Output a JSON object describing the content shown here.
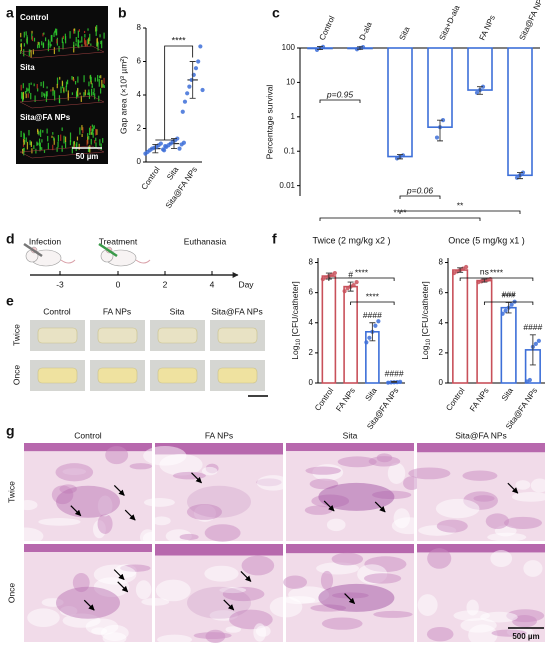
{
  "panel_labels": [
    "a",
    "b",
    "c",
    "d",
    "e",
    "f",
    "g"
  ],
  "panel_a": {
    "labels": [
      "Control",
      "Sita",
      "Sita@FA NPs"
    ],
    "scale_bar": "50 µm"
  },
  "chart_data": [
    {
      "type": "dot",
      "y_label": "Gap area (×10³ µm²)",
      "categories": [
        "Control",
        "Sita",
        "Sita@FA NPs"
      ],
      "values": [
        0.8,
        1.1,
        4.9
      ],
      "errors": [
        0.25,
        0.3,
        1.1
      ],
      "points": [
        [
          0.5,
          0.6,
          0.7,
          0.8,
          0.85,
          0.9,
          1.0,
          1.1,
          0.75,
          0.95
        ],
        [
          0.7,
          0.9,
          1.0,
          1.1,
          1.2,
          1.3,
          1.4,
          0.8,
          1.05,
          1.15
        ],
        [
          3.0,
          3.6,
          4.1,
          4.5,
          4.9,
          5.2,
          5.6,
          6.0,
          6.9,
          4.3
        ]
      ],
      "color": "#3d6fd8",
      "ylim": [
        0,
        8
      ],
      "yticks": [
        0,
        2,
        4,
        6,
        8
      ],
      "brackets": [
        {
          "from": [
            0,
            1
          ],
          "to": 2,
          "label": "****"
        }
      ]
    },
    {
      "type": "bar",
      "log_y": true,
      "y_label": "Percentage survival",
      "categories": [
        "Control",
        "D-ala",
        "Sita",
        "Sita+D-ala",
        "FA NPs",
        "Sita@FA NPs"
      ],
      "values": [
        100,
        100,
        0.07,
        0.5,
        6,
        0.02
      ],
      "errors": [
        10,
        8,
        0.01,
        0.3,
        1.5,
        0.004
      ],
      "points": [
        [
          88,
          100,
          108
        ],
        [
          92,
          100,
          106
        ],
        [
          0.062,
          0.07,
          0.076
        ],
        [
          0.25,
          0.5,
          0.8
        ],
        [
          5,
          6,
          7.5
        ],
        [
          0.017,
          0.02,
          0.024
        ]
      ],
      "color": "#3d6fd8",
      "ylim": [
        0.005,
        100
      ],
      "yticks": [
        0.01,
        0.1,
        1,
        10,
        100
      ],
      "brackets": [
        {
          "from": 0,
          "to": 1,
          "label": "p=0.95"
        },
        {
          "from": 2,
          "to": 3,
          "label": "p=0.06"
        },
        {
          "from": 0,
          "to": 4,
          "label": "****"
        },
        {
          "from": 2,
          "to": 5,
          "label": "**"
        }
      ]
    },
    {
      "type": "bar",
      "title": "Twice (2 mg/kg x2 )",
      "y_label": {
        "text": "Log",
        "sub": "10",
        "after": " [CFU/catheter]"
      },
      "categories": [
        "Control",
        "FA NPs",
        "Sita",
        "Sita@FA NPs"
      ],
      "values": [
        7.1,
        6.4,
        3.4,
        0.05
      ],
      "errors": [
        0.2,
        0.3,
        0.6,
        0.05
      ],
      "points": [
        [
          6.9,
          7.0,
          7.1,
          7.2,
          7.3
        ],
        [
          6.1,
          6.3,
          6.4,
          6.5,
          6.7
        ],
        [
          2.7,
          3.0,
          3.4,
          3.8,
          4.1
        ],
        [
          0.02,
          0.04,
          0.05,
          0.06,
          0.08
        ]
      ],
      "colors": [
        "#c8505a",
        "#c8505a",
        "#3d6fd8",
        "#3d6fd8"
      ],
      "bar_labels": [
        null,
        "#",
        "####",
        "####"
      ],
      "ylim": [
        0,
        8.3
      ],
      "yticks": [
        0,
        2,
        4,
        6,
        8
      ],
      "brackets": [
        {
          "from": 0,
          "to": 3,
          "label": "****"
        },
        {
          "from": 1,
          "to": 3,
          "label": "****"
        }
      ]
    },
    {
      "type": "bar",
      "title": "Once (5 mg/kg x1 )",
      "y_label": {
        "text": "Log",
        "sub": "10",
        "after": " [CFU/catheter]"
      },
      "categories": [
        "Control",
        "FA NPs",
        "Sita",
        "Sita@FA NPs"
      ],
      "values": [
        7.5,
        6.8,
        5.0,
        2.2
      ],
      "errors": [
        0.15,
        0.1,
        0.35,
        1.0
      ],
      "points": [
        [
          7.3,
          7.4,
          7.5,
          7.6,
          7.7
        ],
        [
          6.7,
          6.75,
          6.8,
          6.85,
          6.9
        ],
        [
          4.6,
          4.8,
          5.0,
          5.2,
          5.4
        ],
        [
          0.1,
          0.2,
          2.4,
          2.6,
          2.8
        ]
      ],
      "colors": [
        "#c8505a",
        "#c8505a",
        "#3d6fd8",
        "#3d6fd8"
      ],
      "bar_labels": [
        null,
        "ns",
        "###",
        "####"
      ],
      "ylim": [
        0,
        8.3
      ],
      "yticks": [
        0,
        2,
        4,
        6,
        8
      ],
      "brackets": [
        {
          "from": 0,
          "to": 3,
          "label": "****"
        },
        {
          "from": 1,
          "to": 3,
          "label": "****"
        }
      ]
    }
  ],
  "panel_d": {
    "events": [
      "Infection",
      "Treatment",
      "Euthanasia"
    ],
    "ticks": [
      "-3",
      "0",
      "2",
      "4"
    ],
    "unit": "Day"
  },
  "panel_e": {
    "columns": [
      "Control",
      "FA NPs",
      "Sita",
      "Sita@FA NPs"
    ],
    "rows": [
      "Twice",
      "Once"
    ]
  },
  "panel_g": {
    "columns": [
      "Control",
      "FA NPs",
      "Sita",
      "Sita@FA NPs"
    ],
    "rows": [
      "Twice",
      "Once"
    ],
    "scale_bar": "500 µm"
  }
}
